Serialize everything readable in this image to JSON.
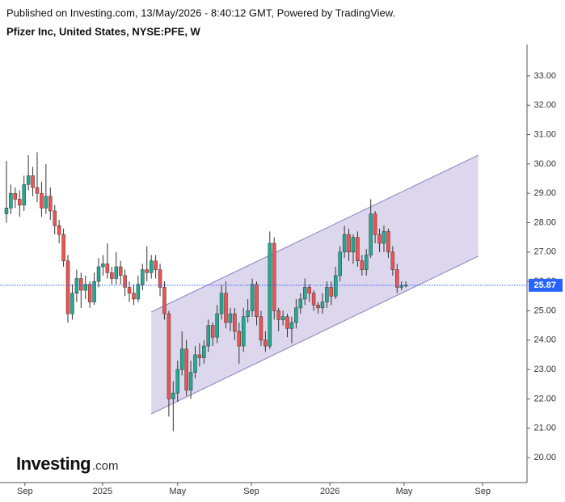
{
  "chart_data": {
    "type": "candlestick",
    "source_note": "Published on Investing.com, 13/May/2026 - 8:40:12 GMT, Powered by TradingView.",
    "title": "Pfizer Inc, United States, NYSE:PFE, W",
    "watermark": "Investing",
    "watermark_suffix": ".com",
    "up_color": "#22ab94",
    "down_color": "#f05350",
    "open": [
      28.3,
      28.5,
      29.0,
      28.8,
      28.6,
      29.3,
      29.6,
      29.2,
      29.0,
      28.5,
      28.9,
      28.4,
      27.9,
      27.6,
      26.7,
      24.9,
      25.6,
      26.1,
      25.7,
      25.9,
      25.3,
      26.0,
      26.5,
      26.6,
      26.3,
      26.1,
      26.5,
      26.2,
      25.8,
      25.6,
      25.4,
      25.9,
      26.4,
      26.3,
      26.7,
      26.4,
      25.8,
      24.9,
      22.0,
      22.2,
      23.0,
      23.7,
      22.3,
      22.9,
      23.5,
      23.4,
      23.8,
      24.5,
      24.1,
      24.9,
      25.6,
      24.6,
      24.9,
      24.3,
      23.8,
      24.8,
      25.0,
      25.9,
      24.8,
      24.0,
      23.8,
      27.3,
      25.0,
      24.7,
      24.8,
      24.4,
      24.6,
      25.1,
      25.4,
      25.8,
      25.6,
      25.2,
      25.1,
      25.3,
      25.8,
      25.5,
      26.2,
      27.0,
      27.6,
      27.0,
      27.5,
      26.7,
      26.4,
      26.9,
      28.3,
      27.6,
      27.3,
      27.7,
      27.0,
      26.4,
      25.8,
      25.85
    ],
    "high": [
      30.1,
      29.3,
      29.2,
      29.1,
      29.6,
      30.3,
      29.9,
      30.4,
      29.4,
      30.0,
      29.2,
      28.6,
      28.1,
      27.8,
      26.9,
      25.9,
      26.4,
      26.3,
      26.2,
      26.0,
      26.3,
      26.8,
      26.9,
      27.3,
      26.5,
      27.0,
      26.7,
      26.4,
      26.0,
      25.9,
      26.2,
      26.6,
      27.2,
      26.9,
      26.9,
      26.6,
      26.0,
      25.0,
      22.6,
      23.3,
      24.3,
      24.0,
      23.3,
      23.8,
      23.9,
      24.0,
      24.7,
      24.6,
      25.2,
      25.9,
      26.0,
      25.1,
      25.1,
      24.6,
      25.1,
      25.4,
      26.1,
      26.0,
      25.0,
      24.3,
      27.7,
      27.5,
      25.1,
      25.0,
      24.9,
      24.8,
      25.4,
      25.6,
      26.1,
      25.9,
      25.7,
      25.3,
      25.6,
      26.0,
      26.0,
      26.5,
      27.2,
      27.9,
      27.8,
      27.6,
      27.7,
      26.9,
      27.1,
      28.8,
      28.4,
      27.8,
      27.9,
      27.8,
      27.2,
      26.6,
      26.0,
      26.0
    ],
    "low": [
      28.0,
      28.3,
      28.5,
      28.2,
      28.4,
      29.1,
      28.9,
      28.7,
      28.2,
      28.3,
      28.1,
      27.6,
      27.3,
      26.5,
      24.6,
      24.7,
      25.3,
      25.1,
      25.4,
      25.1,
      25.2,
      25.8,
      26.2,
      26.1,
      25.9,
      25.9,
      25.9,
      25.5,
      25.3,
      25.2,
      25.3,
      25.7,
      26.0,
      26.1,
      26.1,
      25.5,
      24.7,
      21.4,
      20.9,
      21.9,
      22.8,
      22.1,
      22.0,
      22.7,
      23.1,
      23.2,
      23.6,
      23.8,
      23.9,
      24.7,
      24.4,
      24.3,
      24.0,
      23.2,
      23.6,
      24.6,
      24.8,
      24.5,
      23.8,
      23.6,
      23.7,
      24.7,
      24.3,
      24.5,
      24.1,
      23.9,
      24.4,
      24.9,
      25.2,
      25.3,
      25.0,
      24.9,
      24.9,
      25.1,
      25.2,
      25.4,
      26.0,
      26.8,
      26.7,
      26.6,
      26.5,
      26.2,
      26.2,
      26.8,
      27.3,
      27.0,
      27.0,
      26.8,
      26.2,
      25.6,
      25.7,
      25.8
    ],
    "close": [
      28.5,
      29.0,
      28.8,
      28.6,
      29.3,
      29.6,
      29.2,
      29.0,
      28.5,
      28.9,
      28.4,
      27.9,
      27.6,
      26.7,
      24.9,
      25.6,
      26.1,
      25.7,
      25.9,
      25.3,
      26.0,
      26.5,
      26.6,
      26.3,
      26.1,
      26.5,
      26.2,
      25.8,
      25.6,
      25.4,
      25.9,
      26.4,
      26.3,
      26.7,
      26.4,
      25.8,
      24.9,
      22.0,
      22.2,
      23.0,
      23.7,
      22.3,
      22.9,
      23.5,
      23.4,
      23.8,
      24.5,
      24.1,
      24.9,
      25.6,
      24.6,
      24.9,
      24.3,
      23.8,
      24.8,
      25.0,
      25.9,
      24.8,
      24.0,
      23.8,
      27.3,
      25.0,
      24.7,
      24.8,
      24.4,
      24.6,
      25.1,
      25.4,
      25.8,
      25.6,
      25.2,
      25.1,
      25.3,
      25.8,
      25.5,
      26.2,
      27.0,
      27.6,
      27.0,
      27.5,
      26.7,
      26.4,
      26.9,
      28.3,
      27.6,
      27.3,
      27.7,
      27.0,
      26.4,
      25.8,
      25.85,
      25.87
    ],
    "last_price": 25.87,
    "last_price_color": "#2962ff",
    "channel": {
      "x": [
        33,
        107.5
      ],
      "upper": [
        24.96,
        30.3
      ],
      "lower": [
        21.49,
        26.86
      ],
      "color": "#8e7cc3"
    },
    "xlim": [
      -1.47,
      118.6
    ],
    "xticks": [
      {
        "value": 4.2,
        "label": "Sep"
      },
      {
        "value": 21.9,
        "label": "2025"
      },
      {
        "value": 39.0,
        "label": "May"
      },
      {
        "value": 55.8,
        "label": "Sep"
      },
      {
        "value": 73.7,
        "label": "2026"
      },
      {
        "value": 90.6,
        "label": "May"
      },
      {
        "value": 108.5,
        "label": "Sep"
      }
    ],
    "ylim": [
      19.15,
      34.07
    ],
    "yticks": [
      {
        "value": 20,
        "label": "20.00"
      },
      {
        "value": 21,
        "label": "21.00"
      },
      {
        "value": 22,
        "label": "22.00"
      },
      {
        "value": 23,
        "label": "23.00"
      },
      {
        "value": 24,
        "label": "24.00"
      },
      {
        "value": 25,
        "label": "25.00"
      },
      {
        "value": 26,
        "label": "26.00"
      },
      {
        "value": 27,
        "label": "27.00"
      },
      {
        "value": 28,
        "label": "28.00"
      },
      {
        "value": 29,
        "label": "29.00"
      },
      {
        "value": 30,
        "label": "30.00"
      },
      {
        "value": 31,
        "label": "31.00"
      },
      {
        "value": 32,
        "label": "32.00"
      },
      {
        "value": 33,
        "label": "33.00"
      }
    ]
  }
}
